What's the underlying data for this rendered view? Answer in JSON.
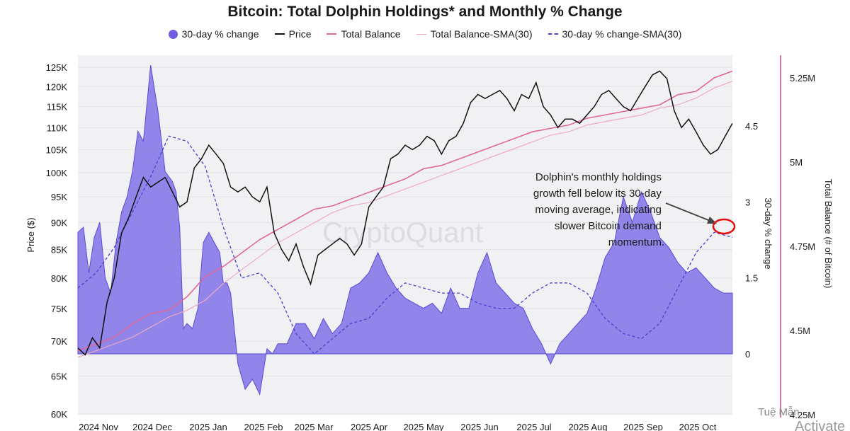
{
  "chart_data": {
    "type": "line",
    "title": "Bitcoin: Total Dolphin Holdings* and Monthly % Change",
    "legend": [
      {
        "name": "30-day % change",
        "color": "#6f5fe0",
        "style": "area"
      },
      {
        "name": "Price",
        "color": "#111111",
        "style": "line"
      },
      {
        "name": "Total Balance",
        "color": "#e0679a",
        "style": "line"
      },
      {
        "name": "Total Balance-SMA(30)",
        "color": "#eea9c4",
        "style": "thin-line"
      },
      {
        "name": "30-day % change-SMA(30)",
        "color": "#4a3fd0",
        "style": "dashed"
      }
    ],
    "x_labels": [
      "2024 Nov",
      "2024 Dec",
      "2025 Jan",
      "2025 Feb",
      "2025 Mar",
      "2025 Apr",
      "2025 May",
      "2025 Jun",
      "2025 Jul",
      "2025 Aug",
      "2025 Sep",
      "2025 Oct"
    ],
    "y_left": {
      "label": "Price ($)",
      "scale": "log",
      "ticks": [
        60000,
        65000,
        70000,
        75000,
        80000,
        85000,
        90000,
        95000,
        100000,
        105000,
        110000,
        115000,
        120000,
        125000
      ],
      "tick_labels": [
        "60K",
        "65K",
        "70K",
        "75K",
        "80K",
        "85K",
        "90K",
        "95K",
        "100K",
        "105K",
        "110K",
        "115K",
        "120K",
        "125K"
      ]
    },
    "y_mid": {
      "label": "30-day % change",
      "ticks": [
        0,
        1.5,
        3,
        4.5
      ],
      "tick_labels": [
        "0",
        "1.5",
        "3",
        "4.5"
      ]
    },
    "y_right": {
      "label": "Total Balance (# of Bitcoin)",
      "ticks": [
        4250000,
        4500000,
        4750000,
        5000000,
        5250000
      ],
      "tick_labels": [
        "4.25M",
        "4.5M",
        "4.75M",
        "5M",
        "5.25M"
      ]
    },
    "series": [
      {
        "name": "30-day % change",
        "axis": "mid",
        "x": [
          0,
          3,
          6,
          9,
          12,
          15,
          18,
          21,
          24,
          27,
          30,
          33,
          36,
          40,
          44,
          48,
          52,
          54,
          56,
          58,
          60,
          63,
          66,
          69,
          72,
          75,
          78,
          80,
          82,
          84,
          88,
          92,
          96,
          100,
          104,
          107,
          110,
          115,
          120,
          125,
          130,
          135,
          140,
          145,
          150,
          155,
          160,
          165,
          170,
          175,
          180,
          185,
          190,
          195,
          200,
          205,
          210,
          215,
          220,
          225,
          230,
          235,
          240,
          245,
          250,
          255,
          260,
          265,
          270,
          275,
          280,
          285,
          290,
          295,
          300,
          305,
          310,
          315,
          320,
          325,
          330,
          335,
          340,
          345,
          350,
          355,
          360
        ],
        "y": [
          2.4,
          2.5,
          1.6,
          2.3,
          2.6,
          1.5,
          1.2,
          2.2,
          2.8,
          3.1,
          3.6,
          4.4,
          4.2,
          5.7,
          4.8,
          3.6,
          3.4,
          3.2,
          2.5,
          0.5,
          0.6,
          0.5,
          0.9,
          2.2,
          2.4,
          2.2,
          2.0,
          1.4,
          1.4,
          1.2,
          -0.2,
          -0.7,
          -0.5,
          -0.8,
          0.1,
          0.0,
          0.2,
          0.2,
          0.6,
          0.6,
          0.3,
          0.7,
          0.4,
          0.6,
          1.3,
          1.4,
          1.6,
          2.0,
          1.6,
          1.3,
          1.1,
          1.0,
          0.9,
          1.0,
          0.8,
          1.3,
          0.9,
          0.9,
          1.6,
          2.0,
          1.4,
          1.2,
          1.0,
          0.9,
          0.5,
          0.2,
          -0.2,
          0.2,
          0.4,
          0.6,
          0.8,
          1.3,
          1.9,
          2.2,
          3.1,
          2.6,
          3.2,
          2.8,
          2.3,
          2.1,
          1.8,
          1.6,
          1.7,
          1.5,
          1.3,
          1.2,
          1.2
        ]
      },
      {
        "name": "Price",
        "axis": "left",
        "x": [
          0,
          4,
          8,
          12,
          16,
          20,
          24,
          28,
          32,
          36,
          40,
          44,
          48,
          52,
          56,
          60,
          64,
          68,
          72,
          76,
          80,
          84,
          88,
          92,
          96,
          100,
          104,
          108,
          112,
          116,
          120,
          124,
          128,
          132,
          136,
          140,
          144,
          148,
          152,
          156,
          160,
          164,
          168,
          172,
          176,
          180,
          184,
          188,
          192,
          196,
          200,
          204,
          208,
          212,
          216,
          220,
          224,
          228,
          232,
          236,
          240,
          244,
          248,
          252,
          256,
          260,
          264,
          268,
          272,
          276,
          280,
          284,
          288,
          292,
          296,
          300,
          304,
          308,
          312,
          316,
          320,
          324,
          328,
          332,
          336,
          340,
          344,
          348,
          352,
          356,
          360
        ],
        "y": [
          69000,
          68000,
          70500,
          69000,
          76000,
          80000,
          88000,
          91000,
          95000,
          99000,
          97000,
          98000,
          99000,
          96000,
          93000,
          94000,
          101000,
          103000,
          106000,
          104000,
          102000,
          97000,
          96000,
          97000,
          95000,
          94000,
          97000,
          88000,
          85000,
          83000,
          86000,
          82000,
          79000,
          84000,
          85000,
          86000,
          87000,
          86000,
          84000,
          86000,
          93000,
          95000,
          97000,
          103000,
          104000,
          106000,
          105000,
          106000,
          108000,
          107000,
          104000,
          107000,
          108000,
          111000,
          116000,
          118000,
          117000,
          118000,
          119000,
          117000,
          114000,
          118000,
          117000,
          121000,
          115000,
          113000,
          110000,
          112000,
          112000,
          111000,
          113000,
          115000,
          118000,
          119000,
          117000,
          115000,
          114000,
          117000,
          120000,
          123000,
          124000,
          122000,
          114000,
          110000,
          112000,
          109000,
          106000,
          104000,
          105000,
          108000,
          111000
        ]
      },
      {
        "name": "Total Balance",
        "axis": "right",
        "x": [
          0,
          10,
          20,
          30,
          40,
          50,
          60,
          70,
          80,
          90,
          100,
          110,
          120,
          130,
          140,
          150,
          160,
          170,
          180,
          190,
          200,
          210,
          220,
          230,
          240,
          250,
          260,
          270,
          280,
          290,
          300,
          310,
          320,
          330,
          340,
          350,
          360
        ],
        "y": [
          4440000,
          4460000,
          4480000,
          4520000,
          4550000,
          4560000,
          4600000,
          4660000,
          4690000,
          4730000,
          4770000,
          4800000,
          4830000,
          4860000,
          4870000,
          4890000,
          4910000,
          4930000,
          4950000,
          4980000,
          4990000,
          5010000,
          5030000,
          5050000,
          5070000,
          5090000,
          5100000,
          5110000,
          5130000,
          5140000,
          5150000,
          5160000,
          5170000,
          5200000,
          5210000,
          5250000,
          5270000
        ]
      },
      {
        "name": "Total Balance-SMA(30)",
        "axis": "right",
        "x": [
          0,
          10,
          20,
          30,
          40,
          50,
          60,
          70,
          80,
          90,
          100,
          110,
          120,
          130,
          140,
          150,
          160,
          170,
          180,
          190,
          200,
          210,
          220,
          230,
          240,
          250,
          260,
          270,
          280,
          290,
          300,
          310,
          320,
          330,
          340,
          350,
          360
        ],
        "y": [
          4420000,
          4440000,
          4460000,
          4480000,
          4510000,
          4540000,
          4560000,
          4590000,
          4640000,
          4680000,
          4720000,
          4760000,
          4790000,
          4820000,
          4850000,
          4870000,
          4880000,
          4900000,
          4920000,
          4940000,
          4960000,
          4980000,
          5000000,
          5020000,
          5040000,
          5060000,
          5080000,
          5090000,
          5110000,
          5120000,
          5130000,
          5140000,
          5160000,
          5170000,
          5190000,
          5220000,
          5240000
        ]
      },
      {
        "name": "30-day % change-SMA(30)",
        "axis": "mid",
        "x": [
          0,
          10,
          20,
          30,
          40,
          50,
          60,
          70,
          80,
          90,
          100,
          110,
          120,
          130,
          140,
          150,
          160,
          170,
          180,
          190,
          200,
          210,
          220,
          230,
          240,
          250,
          260,
          270,
          280,
          290,
          300,
          310,
          320,
          330,
          340,
          350,
          360
        ],
        "y": [
          1.3,
          1.6,
          2.1,
          2.8,
          3.5,
          4.3,
          4.2,
          3.7,
          2.5,
          1.5,
          1.6,
          1.2,
          0.4,
          0.0,
          0.3,
          0.6,
          0.7,
          1.1,
          1.4,
          1.3,
          1.2,
          1.2,
          1.0,
          0.9,
          0.9,
          1.2,
          1.4,
          1.4,
          1.2,
          0.7,
          0.4,
          0.3,
          0.6,
          1.3,
          2.0,
          2.4,
          2.3
        ]
      }
    ],
    "annotation": "Dolphin's monthly holdings growth fell below its 30-day moving average, indicating slower Bitcoin demand momentum.",
    "grid": false
  },
  "watermark": "CryptoQuant",
  "corner_text": "Tuệ Mẫn",
  "overlay_text": "Activate"
}
